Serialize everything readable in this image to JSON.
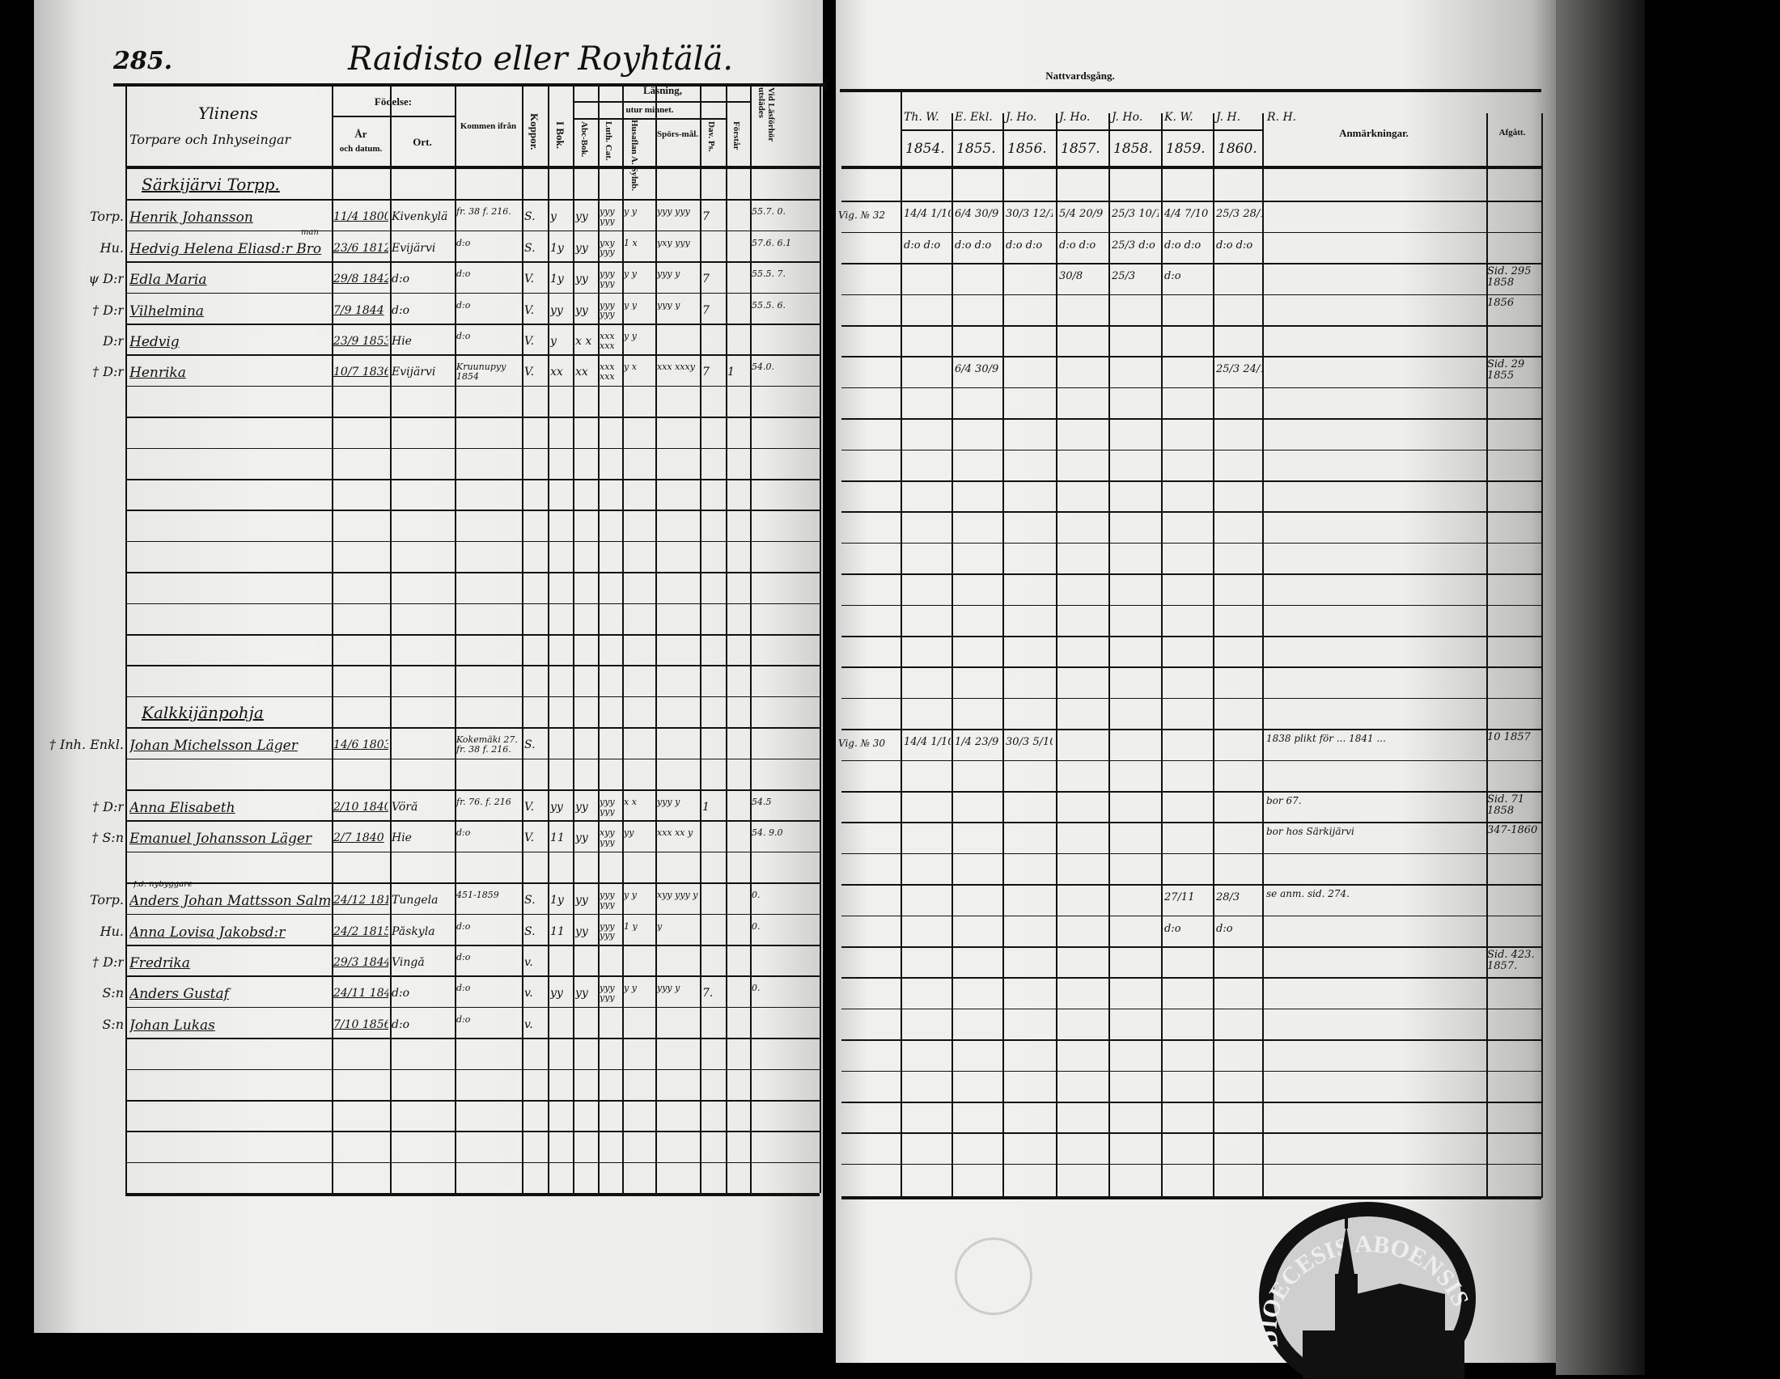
{
  "left_page": {
    "page_number": "285.",
    "title": "Raidisto eller Royhtälä.",
    "headers": {
      "name_line1": "Ylinens",
      "name_line2": "Torpare och Inhyseingar",
      "fodelse": "Födelse:",
      "ar": "År",
      "och_datum": "och datum.",
      "ort": "Ort.",
      "kommen": "Kommen ifrån",
      "koppor": "Koppor.",
      "lasning": "Läsning,",
      "utur_minnet": "utur minnet.",
      "bok": "I Bok.",
      "abc": "Abc-Bok.",
      "luth": "Luth. Cat.",
      "husaflan": "Husaflan A. Sylnb.",
      "spors": "Spörs-mål.",
      "dav": "Dav. Ps.",
      "forsar": "Förstår",
      "vid": "Vid Läsförhör utslädes"
    },
    "rows": [
      {
        "row": 0,
        "section": "Särkijärvi Torpp."
      },
      {
        "row": 1,
        "prefix": "Torp.",
        "name": "Henrik Johansson",
        "date": "11/4 1800",
        "ort": "Kivenkylä",
        "kommen": "fr. 38 f. 216.",
        "koppor": "S.",
        "bok": "y",
        "abc": "yy",
        "luth": "yyy yyy",
        "hus": "y y",
        "spors": "yyy yyy",
        "dav": "7",
        "forsar": "",
        "vid": "55.7. 0."
      },
      {
        "row": 2,
        "prefix": "Hu.",
        "name": "Hedvig Helena Eliasd:r Bro",
        "note": "man",
        "date": "23/6 1812",
        "ort": "Evijärvi",
        "kommen": "d:o",
        "koppor": "S.",
        "bok": "1y",
        "abc": "yy",
        "luth": "yxy yyy",
        "hus": "1 x",
        "spors": "yxy yyy",
        "dav": "",
        "forsar": "",
        "vid": "57.6. 6.1"
      },
      {
        "row": 3,
        "prefix": "ψ D:r",
        "name": "Edla Maria",
        "date": "29/8 1842",
        "ort": "d:o",
        "kommen": "d:o",
        "koppor": "V.",
        "bok": "1y",
        "abc": "yy",
        "luth": "yyy yyy",
        "hus": "y y",
        "spors": "yyy y",
        "dav": "7",
        "forsar": "",
        "vid": "55.5. 7."
      },
      {
        "row": 4,
        "prefix": "† D:r",
        "name": "Vilhelmina",
        "date": "7/9 1844",
        "ort": "d:o",
        "kommen": "d:o",
        "koppor": "V.",
        "bok": "yy",
        "abc": "yy",
        "luth": "yyy yyy",
        "hus": "y y",
        "spors": "yyy y",
        "dav": "7",
        "forsar": "",
        "vid": "55.5. 6."
      },
      {
        "row": 5,
        "prefix": "D:r",
        "name": "Hedvig",
        "date": "23/9 1853",
        "ort": "Hie",
        "kommen": "d:o",
        "koppor": "V.",
        "bok": "y",
        "abc": "x x",
        "luth": "xxx xxx",
        "hus": "y y",
        "spors": "",
        "dav": "",
        "forsar": "",
        "vid": ""
      },
      {
        "row": 6,
        "prefix": "† D:r",
        "name": "Henrika",
        "date": "10/7 1836",
        "ort": "Evijärvi",
        "kommen": "Kruunupyy 1854",
        "koppor": "V.",
        "bok": "xx",
        "abc": "xx",
        "luth": "xxx xxx",
        "hus": "y x",
        "spors": "xxx xxxy",
        "dav": "7",
        "forsar": "1",
        "vid": "54.0."
      },
      {
        "row": 17,
        "section": "Kalkkijänpohja"
      },
      {
        "row": 18,
        "prefix": "† Inh. Enkl.",
        "name": "Johan Michelsson Läger",
        "date": "14/6 1803",
        "ort": "",
        "kommen": "Kokemäki 27. fr. 38 f. 216.",
        "koppor": "S.",
        "bok": "",
        "abc": "",
        "luth": "",
        "hus": "",
        "spors": "",
        "dav": "",
        "forsar": "",
        "vid": ""
      },
      {
        "row": 20,
        "prefix": "† D:r",
        "name": "Anna Elisabeth",
        "date": "2/10 1840",
        "ort": "Vörå",
        "kommen": "fr. 76. f. 216",
        "koppor": "V.",
        "bok": "yy",
        "abc": "yy",
        "luth": "yyy yyy",
        "hus": "x x",
        "spors": "yyy y",
        "dav": "1",
        "forsar": "",
        "vid": "54.5"
      },
      {
        "row": 21,
        "prefix": "† S:n",
        "name": "Emanuel Johansson Läger",
        "date": "2/7 1840",
        "ort": "Hie",
        "kommen": "d:o",
        "koppor": "V.",
        "bok": "11",
        "abc": "yy",
        "luth": "xyy yyy",
        "hus": "yy",
        "spors": "xxx xx y",
        "dav": "",
        "forsar": "",
        "vid": "54. 9.0"
      },
      {
        "row": 23,
        "prefix": "Torp.",
        "name": "Anders Johan Mattsson Salmen",
        "note": "f.d. nybyggare",
        "date": "24/12 1817",
        "ort": "Tungela",
        "kommen": "451-1859",
        "koppor": "S.",
        "bok": "1y",
        "abc": "yy",
        "luth": "yyy yyy",
        "hus": "y y",
        "spors": "xyy yyy y",
        "dav": "",
        "forsar": "",
        "vid": "0."
      },
      {
        "row": 24,
        "prefix": "Hu.",
        "name": "Anna Lovisa Jakobsd:r",
        "date": "24/2 1815",
        "ort": "Påskyla",
        "kommen": "d:o",
        "koppor": "S.",
        "bok": "11",
        "abc": "yy",
        "luth": "yyy yyy",
        "hus": "1 y",
        "spors": "y",
        "dav": "",
        "forsar": "",
        "vid": "0."
      },
      {
        "row": 25,
        "prefix": "† D:r",
        "name": "Fredrika",
        "date": "29/3 1844",
        "ort": "Vingå",
        "kommen": "d:o",
        "koppor": "v.",
        "bok": "",
        "abc": "",
        "luth": "",
        "hus": "",
        "spors": "",
        "dav": "",
        "forsar": "",
        "vid": ""
      },
      {
        "row": 26,
        "prefix": "S:n",
        "name": "Anders Gustaf",
        "date": "24/11 1846",
        "ort": "d:o",
        "kommen": "d:o",
        "koppor": "v.",
        "bok": "yy",
        "abc": "yy",
        "luth": "yyy yyy",
        "hus": "y y",
        "spors": "yyy y",
        "dav": "7.",
        "forsar": "",
        "vid": "0."
      },
      {
        "row": 27,
        "prefix": "S:n",
        "name": "Johan Lukas",
        "date": "7/10 1856",
        "ort": "d:o",
        "kommen": "d:o",
        "koppor": "v.",
        "bok": "",
        "abc": "",
        "luth": "",
        "hus": "",
        "spors": "",
        "dav": "",
        "forsar": "",
        "vid": ""
      }
    ]
  },
  "right_page": {
    "headers": {
      "nattvardsgang": "Nattvardsgång.",
      "pastors": [
        "Th. W.",
        "E. Ekl.",
        "J. Ho.",
        "J. Ho.",
        "J. Ho.",
        "K. W.",
        "J. H.",
        "R. H."
      ],
      "years": [
        "1854.",
        "1855.",
        "1856.",
        "1857.",
        "1858.",
        "1859.",
        "1860."
      ],
      "anmarkningar": "Anmärkningar.",
      "afgatt": "Afgått."
    },
    "rows": [
      {
        "row": 1,
        "lead": "Vig. № 32",
        "years": [
          "14/4 1/10",
          "6/4 30/9",
          "30/3 12/10",
          "5/4 20/9",
          "25/3 10/10",
          "4/4 7/10",
          "25/3 28/10"
        ],
        "anm": "",
        "afgatt": ""
      },
      {
        "row": 2,
        "lead": "",
        "years": [
          "d:o d:o",
          "d:o d:o",
          "d:o d:o",
          "d:o d:o",
          "25/3 d:o",
          "d:o d:o",
          "d:o d:o"
        ],
        "anm": "",
        "afgatt": ""
      },
      {
        "row": 3,
        "lead": "",
        "years": [
          "",
          "",
          "",
          "30/8",
          "25/3",
          "d:o",
          ""
        ],
        "anm": "",
        "afgatt": "Sid. 295 1858"
      },
      {
        "row": 4,
        "lead": "",
        "years": [
          "",
          "",
          "",
          "",
          "",
          "",
          ""
        ],
        "anm": "",
        "afgatt": "1856"
      },
      {
        "row": 6,
        "lead": "",
        "years": [
          "",
          "6/4 30/9",
          "",
          "",
          "",
          "",
          "25/3 24/10"
        ],
        "anm": "",
        "afgatt": "Sid. 29 1855"
      },
      {
        "row": 18,
        "lead": "Vig. № 30",
        "years": [
          "14/4 1/10",
          "1/4 23/9",
          "30/3 5/10",
          "",
          "",
          "",
          ""
        ],
        "anm": "1838 plikt för ... 1841 ...",
        "afgatt": "10 1857"
      },
      {
        "row": 20,
        "lead": "",
        "years": [
          "",
          "",
          "",
          "",
          "",
          "",
          ""
        ],
        "anm": "bor 67.",
        "afgatt": "Sid. 71 1858"
      },
      {
        "row": 21,
        "lead": "",
        "years": [
          "",
          "",
          "",
          "",
          "",
          "",
          ""
        ],
        "anm": "bor hos Särkijärvi",
        "afgatt": "347-1860"
      },
      {
        "row": 23,
        "lead": "",
        "years": [
          "",
          "",
          "",
          "",
          "",
          "27/11",
          "28/3"
        ],
        "anm": "se anm. sid. 274.",
        "afgatt": ""
      },
      {
        "row": 24,
        "lead": "",
        "years": [
          "",
          "",
          "",
          "",
          "",
          "d:o",
          "d:o"
        ],
        "anm": "",
        "afgatt": ""
      },
      {
        "row": 25,
        "lead": "",
        "years": [
          "",
          "",
          "",
          "",
          "",
          "",
          ""
        ],
        "anm": "",
        "afgatt": "Sid. 423. 1857."
      }
    ]
  },
  "stamp": {
    "text": "DIOECESIS ABOENSIS",
    "edge_text": "IN"
  },
  "colors": {
    "ink": "#111111",
    "paper": "#ececea",
    "background": "#000000"
  }
}
